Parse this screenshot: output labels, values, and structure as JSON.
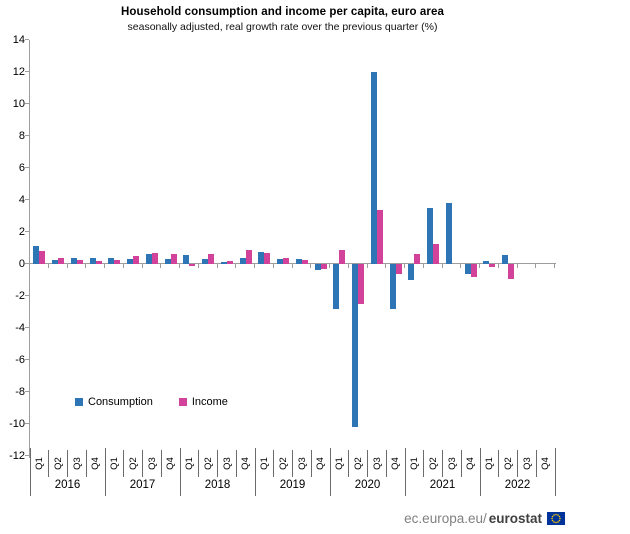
{
  "title": "Household consumption and income per capita, euro area",
  "subtitle": "seasonally adjusted, real growth rate over the previous quarter (%)",
  "legend": [
    {
      "label": "Consumption",
      "color": "#2e75b6"
    },
    {
      "label": "Income",
      "color": "#d2429b"
    }
  ],
  "footer": {
    "url_prefix": "ec.europa.eu/",
    "url_bold": "eurostat",
    "flag_icon": "eu-flag-icon"
  },
  "chart_data": {
    "type": "bar",
    "title": "Household consumption and income per capita, euro area",
    "subtitle": "seasonally adjusted, real growth rate over the previous quarter (%)",
    "ylabel": "real growth rate over the previous quarter (%)",
    "xlabel": "",
    "ylim": [
      -12,
      14
    ],
    "ytick_step": 2,
    "grid": false,
    "legend_position": "inside lower left",
    "axis_color": "#9d9d9d",
    "years": [
      "2016",
      "2017",
      "2018",
      "2019",
      "2020",
      "2021",
      "2022"
    ],
    "quarters": [
      "Q1",
      "Q2",
      "Q3",
      "Q4"
    ],
    "categories": [
      "2016-Q1",
      "2016-Q2",
      "2016-Q3",
      "2016-Q4",
      "2017-Q1",
      "2017-Q2",
      "2017-Q3",
      "2017-Q4",
      "2018-Q1",
      "2018-Q2",
      "2018-Q3",
      "2018-Q4",
      "2019-Q1",
      "2019-Q2",
      "2019-Q3",
      "2019-Q4",
      "2020-Q1",
      "2020-Q2",
      "2020-Q3",
      "2020-Q4",
      "2021-Q1",
      "2021-Q2",
      "2021-Q3",
      "2021-Q4",
      "2022-Q1",
      "2022-Q2",
      "2022-Q3",
      "2022-Q4"
    ],
    "series": [
      {
        "name": "Consumption",
        "color": "#2e75b6",
        "values": [
          1.1,
          0.25,
          0.35,
          0.35,
          0.4,
          0.3,
          0.6,
          0.3,
          0.55,
          0.3,
          0.1,
          0.35,
          0.75,
          0.3,
          0.3,
          -0.4,
          -2.8,
          -10.2,
          12.0,
          -2.8,
          -1.0,
          3.5,
          3.8,
          -0.6,
          0.2,
          0.55,
          null,
          null
        ]
      },
      {
        "name": "Income",
        "color": "#d2429b",
        "values": [
          0.8,
          0.4,
          0.25,
          0.2,
          0.25,
          0.5,
          0.7,
          0.6,
          -0.15,
          0.65,
          0.2,
          0.9,
          0.7,
          0.35,
          0.25,
          -0.3,
          0.85,
          -2.5,
          3.4,
          -0.6,
          0.65,
          1.25,
          0.0,
          -0.8,
          -0.2,
          -0.95,
          null,
          null
        ]
      }
    ]
  }
}
